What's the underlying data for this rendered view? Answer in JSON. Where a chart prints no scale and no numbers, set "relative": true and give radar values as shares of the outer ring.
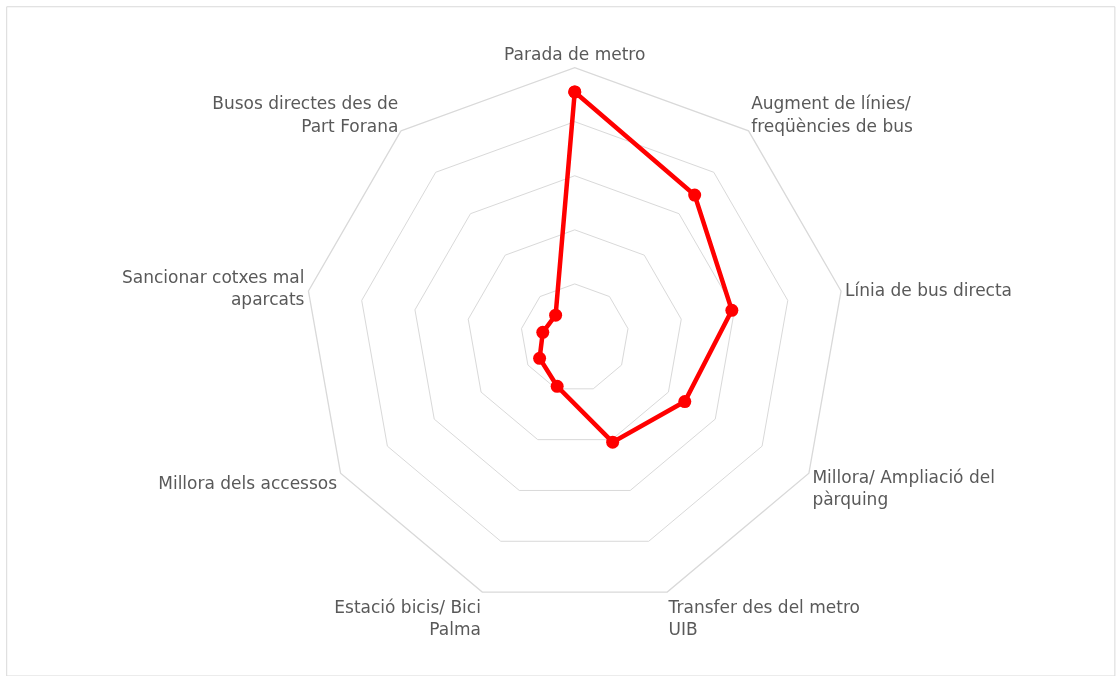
{
  "chart_data": {
    "type": "radar",
    "relative": true,
    "grid": true,
    "legend": false,
    "marker": "circle",
    "line_style": "solid",
    "categories": [
      "Parada de metro",
      "Augment de línies/ freqüències de bus",
      "Línia de bus directa",
      "Millora/ Ampliació del pàrquing",
      "Transfer des del metro UIB",
      "Estació bicis/ Bici Palma",
      "Millora dels accessos",
      "Sancionar cotxes mal aparcats",
      "Busos directes des de Part Forana"
    ],
    "series": [
      {
        "color": "#ff0000",
        "values": [
          0.91,
          0.69,
          0.59,
          0.47,
          0.41,
          0.19,
          0.15,
          0.12,
          0.11
        ]
      }
    ]
  }
}
